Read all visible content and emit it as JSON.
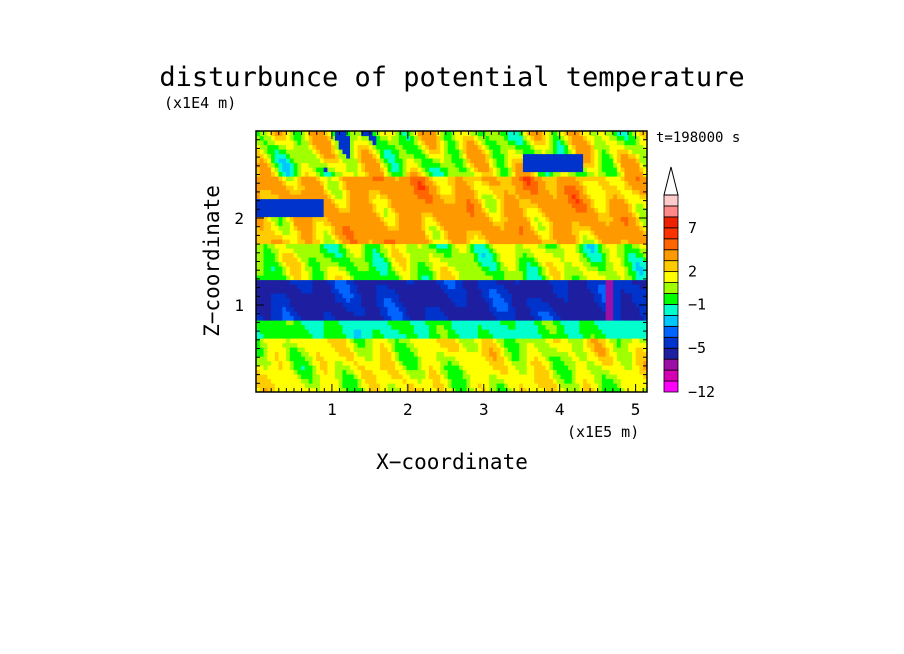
{
  "chart_data": {
    "type": "heatmap",
    "title": "disturbunce of potential temperature",
    "xlabel": "X−coordinate",
    "ylabel": "Z−coordinate",
    "x_unit": "(x1E5 m)",
    "y_unit": "(x1E4 m)",
    "time_label": "t=198000 s",
    "xlim": [
      0,
      5.15
    ],
    "ylim": [
      0,
      3.0
    ],
    "x_ticks": [
      1,
      2,
      3,
      4,
      5
    ],
    "x_tick_labels": [
      "1",
      "2",
      "3",
      "4",
      "5"
    ],
    "y_ticks": [
      1,
      2
    ],
    "y_tick_labels": [
      "1",
      "2"
    ],
    "colorbar": {
      "levels": [
        -12,
        -10,
        -8,
        -7,
        -5,
        -4,
        -3,
        -2,
        -1,
        0,
        1,
        2,
        3,
        5,
        6,
        7,
        8,
        9
      ],
      "colors": [
        "#ff00ff",
        "#d400b4",
        "#9c0fa6",
        "#1e1ea0",
        "#0033cc",
        "#0064ff",
        "#00c8ff",
        "#00ffcc",
        "#00ff00",
        "#a0ff00",
        "#ffff00",
        "#ffcc00",
        "#ff9900",
        "#ff6600",
        "#ff3300",
        "#ee2200",
        "#ff8888",
        "#ffcccc"
      ],
      "tick_values": [
        7,
        2,
        -1,
        -5,
        -12
      ],
      "tick_labels": [
        "7",
        "2",
        "−1",
        "−5",
        "−12"
      ],
      "extend": "max"
    },
    "structure": [
      {
        "z_range": [
          0.0,
          0.6
        ],
        "value": 1.5
      },
      {
        "z_range": [
          0.6,
          0.85
        ],
        "value": -1
      },
      {
        "z_range": [
          0.85,
          1.3
        ],
        "value": -5
      },
      {
        "z_range": [
          1.3,
          1.7
        ],
        "value": 0.5
      },
      {
        "z_range": [
          1.7,
          2.5
        ],
        "value": 3
      },
      {
        "z_range": [
          2.5,
          3.0
        ],
        "value": 1
      }
    ]
  }
}
